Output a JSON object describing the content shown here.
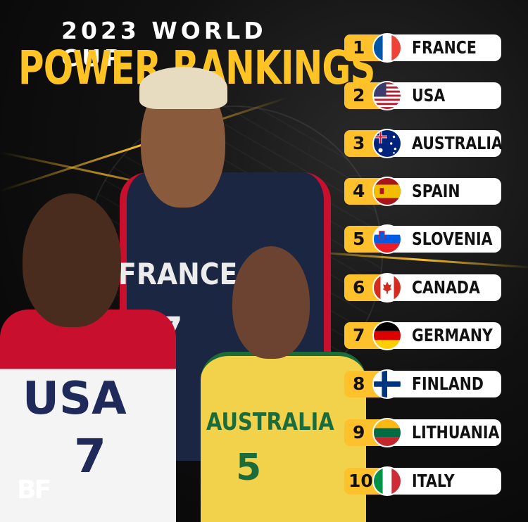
{
  "header": {
    "subtitle": "2023 WORLD CUP",
    "title": "POWER RANKINGS"
  },
  "rankings": [
    {
      "rank": "1",
      "country": "FRANCE",
      "flag_icon": "france-flag-icon"
    },
    {
      "rank": "2",
      "country": "USA",
      "flag_icon": "usa-flag-icon"
    },
    {
      "rank": "3",
      "country": "AUSTRALIA",
      "flag_icon": "australia-flag-icon"
    },
    {
      "rank": "4",
      "country": "SPAIN",
      "flag_icon": "spain-flag-icon"
    },
    {
      "rank": "5",
      "country": "SLOVENIA",
      "flag_icon": "slovenia-flag-icon"
    },
    {
      "rank": "6",
      "country": "CANADA",
      "flag_icon": "canada-flag-icon"
    },
    {
      "rank": "7",
      "country": "GERMANY",
      "flag_icon": "germany-flag-icon"
    },
    {
      "rank": "8",
      "country": "FINLAND",
      "flag_icon": "finland-flag-icon"
    },
    {
      "rank": "9",
      "country": "LITHUANIA",
      "flag_icon": "lithuania-flag-icon"
    },
    {
      "rank": "10",
      "country": "ITALY",
      "flag_icon": "italy-flag-icon"
    }
  ],
  "players": {
    "france": {
      "jersey_text": "FRANCE",
      "number": "27"
    },
    "usa": {
      "jersey_text": "USA",
      "number": "7"
    },
    "australia": {
      "jersey_text": "AUSTRALIA",
      "number": "5"
    }
  },
  "logo": {
    "text": "BF"
  },
  "colors": {
    "accent": "#ffc12b",
    "background": "#0b0b0b",
    "pill": "#ffffff"
  }
}
